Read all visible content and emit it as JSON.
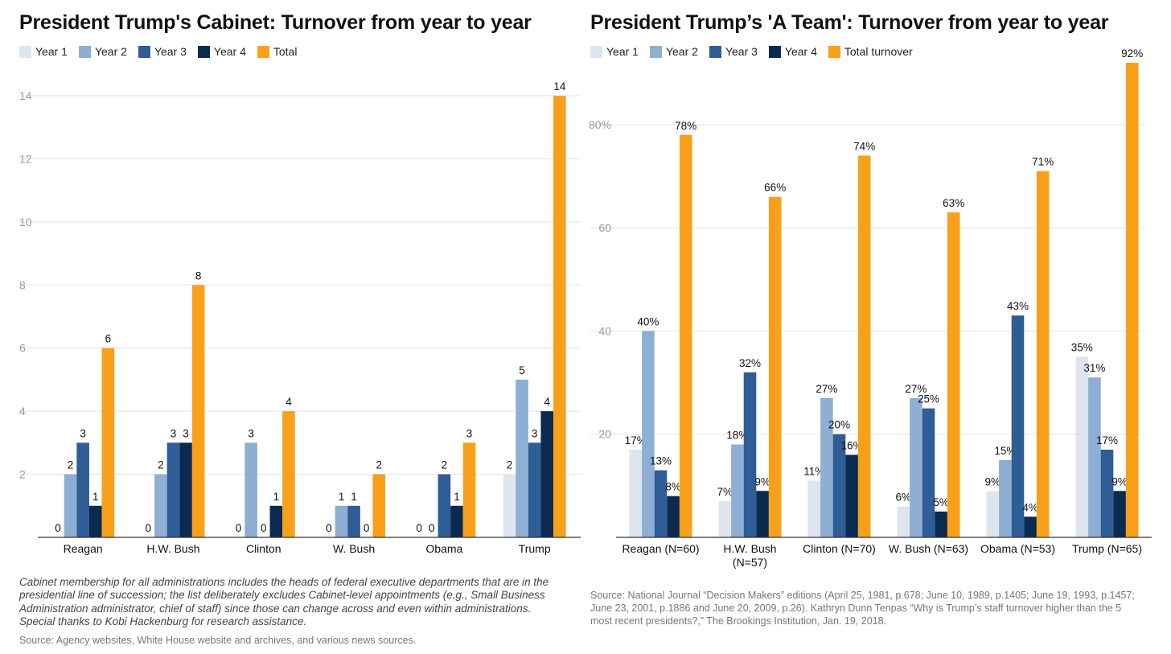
{
  "colors": {
    "year1": "#dde6ef",
    "year2": "#8eaed4",
    "year3": "#2f5d95",
    "year4": "#0b2a4f",
    "total": "#f9a01b",
    "grid": "#e3e3e3",
    "axis": "#333333"
  },
  "left": {
    "title": "President Trump's Cabinet: Turnover from year to year",
    "legend": [
      "Year 1",
      "Year 2",
      "Year 3",
      "Year 4",
      "Total"
    ],
    "footnote": "Cabinet membership for all administrations includes the heads of federal executive departments that are in the presidential line of succession; the list deliberately excludes Cabinet-level appointments (e.g., Small Business Administration administrator, chief of staff) since those can change across and even within administrations. Special thanks to Kobi Hackenburg for research assistance.",
    "source": "Source: Agency websites, White House website and archives, and various news sources."
  },
  "right": {
    "title": "President Trump’s 'A Team': Turnover from year to year",
    "legend": [
      "Year 1",
      "Year 2",
      "Year 3",
      "Year 4",
      "Total turnover"
    ],
    "source": "Source: National Journal “Decision Makers” editions (April 25, 1981, p.678; June 10, 1989, p.1405; June 19, 1993, p.1457; June 23, 2001, p.1886 and June 20, 2009, p.26). Kathryn Dunn Tenpas “Why is Trump’s staff turnover higher than the 5 most recent presidents?,” The Brookings Institution, Jan. 19, 2018."
  },
  "chart_data": [
    {
      "type": "bar",
      "title": "President Trump's Cabinet: Turnover from year to year",
      "categories": [
        "Reagan",
        "H.W. Bush",
        "Clinton",
        "W. Bush",
        "Obama",
        "Trump"
      ],
      "series": [
        {
          "name": "Year 1",
          "values": [
            0,
            0,
            0,
            0,
            0,
            2
          ]
        },
        {
          "name": "Year 2",
          "values": [
            2,
            2,
            3,
            1,
            0,
            5
          ]
        },
        {
          "name": "Year 3",
          "values": [
            3,
            3,
            0,
            1,
            2,
            3
          ]
        },
        {
          "name": "Year 4",
          "values": [
            1,
            3,
            1,
            0,
            1,
            4
          ]
        },
        {
          "name": "Total",
          "values": [
            6,
            8,
            4,
            2,
            3,
            14
          ]
        }
      ],
      "ylim": [
        0,
        14
      ],
      "yticks": [
        2,
        4,
        6,
        8,
        10,
        12,
        14
      ],
      "ytick_labels": [
        "2",
        "4",
        "6",
        "8",
        "10",
        "12",
        "14"
      ],
      "value_labels": [
        [
          "0",
          "0",
          "0",
          "0",
          "0",
          "2"
        ],
        [
          "2",
          "2",
          "3",
          "1",
          "0",
          "5"
        ],
        [
          "3",
          "3",
          "0",
          "1",
          "2",
          "3"
        ],
        [
          "1",
          "3",
          "1",
          "0",
          "1",
          "4"
        ],
        [
          "6",
          "8",
          "4",
          "2",
          "3",
          "14"
        ]
      ],
      "grid": true,
      "legend_position": "top-left"
    },
    {
      "type": "bar",
      "title": "President Trump’s 'A Team': Turnover from year to year",
      "categories": [
        "Reagan (N=60)",
        "H.W. Bush (N=57)",
        "Clinton (N=70)",
        "W. Bush (N=63)",
        "Obama (N=53)",
        "Trump (N=65)"
      ],
      "series": [
        {
          "name": "Year 1",
          "values": [
            17,
            7,
            11,
            6,
            9,
            35
          ]
        },
        {
          "name": "Year 2",
          "values": [
            40,
            18,
            27,
            27,
            15,
            31
          ]
        },
        {
          "name": "Year 3",
          "values": [
            13,
            32,
            20,
            25,
            43,
            17
          ]
        },
        {
          "name": "Year 4",
          "values": [
            8,
            9,
            16,
            5,
            4,
            9
          ]
        },
        {
          "name": "Total turnover",
          "values": [
            78,
            66,
            74,
            63,
            71,
            92
          ]
        }
      ],
      "ylim": [
        0,
        92
      ],
      "yticks": [
        20,
        40,
        60,
        80
      ],
      "ytick_labels": [
        "20",
        "40",
        "60",
        "80%"
      ],
      "value_labels": [
        [
          "17%",
          "7%",
          "11%",
          "6%",
          "9%",
          "35%"
        ],
        [
          "40%",
          "18%",
          "27%",
          "27%",
          "15%",
          "31%"
        ],
        [
          "13%",
          "32%",
          "20%",
          "25%",
          "43%",
          "17%"
        ],
        [
          "8%",
          "9%",
          "16%",
          "5%",
          "4%",
          "9%"
        ],
        [
          "78%",
          "66%",
          "74%",
          "63%",
          "71%",
          "92%"
        ]
      ],
      "grid": true,
      "legend_position": "top-left"
    }
  ]
}
